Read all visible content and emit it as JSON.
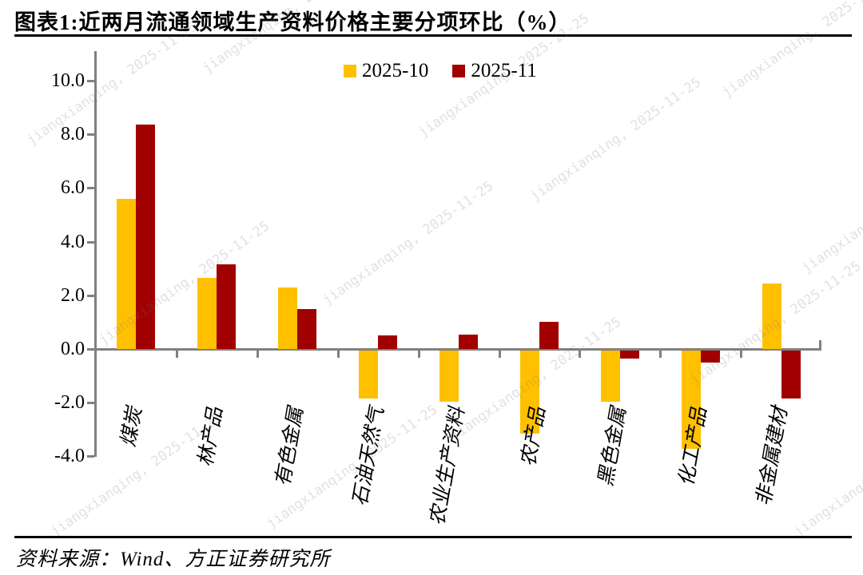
{
  "header": {
    "title": "图表1:近两月流通领域生产资料价格主要分项环比（%）"
  },
  "legend": {
    "items": [
      {
        "label": "2025-10",
        "color": "#FFC000"
      },
      {
        "label": "2025-11",
        "color": "#A00000"
      }
    ]
  },
  "chart_data": {
    "type": "bar",
    "title": "图表1:近两月流通领域生产资料价格主要分项环比（%）",
    "categories": [
      "煤炭",
      "林产品",
      "有色金属",
      "石油天然气",
      "农业生产资料",
      "农产品",
      "黑色金属",
      "化工产品",
      "非金属建材"
    ],
    "series": [
      {
        "name": "2025-10",
        "color": "#FFC000",
        "values": [
          5.6,
          2.65,
          2.3,
          -1.8,
          -1.9,
          -3.1,
          -1.9,
          -3.65,
          2.45
        ]
      },
      {
        "name": "2025-11",
        "color": "#A00000",
        "values": [
          8.35,
          3.15,
          1.5,
          0.5,
          0.55,
          1.0,
          -0.3,
          -0.45,
          -1.8
        ]
      }
    ],
    "unit": "%",
    "xlabel": "",
    "ylabel": "",
    "ylim": [
      -4.0,
      10.0
    ],
    "yticks": [
      10.0,
      8.0,
      6.0,
      4.0,
      2.0,
      0.0,
      -2.0,
      -4.0
    ],
    "ytick_labels": [
      "10.0",
      "8.0",
      "6.0",
      "4.0",
      "2.0",
      "0.0",
      "-2.0",
      "-4.0"
    ],
    "grid": false,
    "legend_position": "top-center"
  },
  "footer": {
    "source": "资料来源：Wind、方正证券研究所"
  },
  "watermark": {
    "text": "jiangxianqing, 2025-11-25"
  },
  "colors": {
    "axis": "#808080",
    "text": "#000000",
    "bar_2025_10": "#FFC000",
    "bar_2025_11": "#A00000"
  }
}
